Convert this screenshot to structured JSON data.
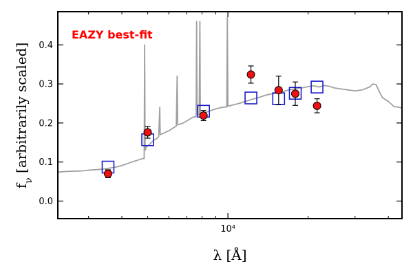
{
  "chart_data": {
    "type": "scatter",
    "title": "",
    "xlabel": "λ [Å]",
    "ylabel": "f_ν [arbitrarily scaled]",
    "x_scale": "log",
    "xlim": [
      2300,
      45000
    ],
    "ylim": [
      -0.045,
      0.485
    ],
    "y_ticks": [
      0.0,
      0.1,
      0.2,
      0.3,
      0.4
    ],
    "y_tick_labels": [
      "0.0",
      "0.1",
      "0.2",
      "0.3",
      "0.4"
    ],
    "x_major_ticks": [
      10000
    ],
    "x_major_tick_labels": [
      "10⁴"
    ],
    "x_minor_ticks": [
      3000,
      4000,
      5000,
      6000,
      7000,
      8000,
      9000,
      20000,
      30000,
      40000
    ],
    "grid": false,
    "annotation": {
      "text": "EAZY best-fit",
      "color": "#ff0000"
    },
    "colors": {
      "template": "#a0a0a0",
      "observed": "#ee1111",
      "model": "#1a1acc"
    },
    "series": [
      {
        "kind": "line",
        "points": [
          [
            2300,
            0.074
          ],
          [
            2500,
            0.076
          ],
          [
            2800,
            0.077
          ],
          [
            3000,
            0.079
          ],
          [
            3300,
            0.081
          ],
          [
            3500,
            0.083
          ],
          [
            3800,
            0.087
          ],
          [
            4000,
            0.091
          ],
          [
            4200,
            0.096
          ],
          [
            4400,
            0.101
          ],
          [
            4600,
            0.105
          ],
          [
            4800,
            0.109
          ],
          [
            4850,
            0.109
          ],
          [
            4870,
            0.4
          ],
          [
            4890,
            0.13
          ],
          [
            4950,
            0.14
          ],
          [
            5000,
            0.141
          ],
          [
            5200,
            0.152
          ],
          [
            5300,
            0.157
          ],
          [
            5400,
            0.16
          ],
          [
            5500,
            0.165
          ],
          [
            5550,
            0.24
          ],
          [
            5570,
            0.17
          ],
          [
            6000,
            0.18
          ],
          [
            6400,
            0.192
          ],
          [
            6450,
            0.32
          ],
          [
            6480,
            0.195
          ],
          [
            6800,
            0.2
          ],
          [
            7000,
            0.205
          ],
          [
            7400,
            0.215
          ],
          [
            7600,
            0.216
          ],
          [
            7630,
            0.46
          ],
          [
            7660,
            0.22
          ],
          [
            7800,
            0.222
          ],
          [
            7850,
            0.46
          ],
          [
            7880,
            0.222
          ],
          [
            8000,
            0.224
          ],
          [
            8500,
            0.23
          ],
          [
            9000,
            0.236
          ],
          [
            9500,
            0.24
          ],
          [
            9900,
            0.241
          ],
          [
            9950,
            0.47
          ],
          [
            10000,
            0.243
          ],
          [
            11000,
            0.25
          ],
          [
            12000,
            0.258
          ],
          [
            13000,
            0.265
          ],
          [
            14000,
            0.272
          ],
          [
            15000,
            0.276
          ],
          [
            16000,
            0.28
          ],
          [
            17000,
            0.285
          ],
          [
            18000,
            0.288
          ],
          [
            19000,
            0.29
          ],
          [
            20000,
            0.293
          ],
          [
            21000,
            0.295
          ],
          [
            22000,
            0.292
          ],
          [
            23000,
            0.296
          ],
          [
            24000,
            0.294
          ],
          [
            25000,
            0.29
          ],
          [
            26000,
            0.288
          ],
          [
            28000,
            0.285
          ],
          [
            30000,
            0.282
          ],
          [
            32000,
            0.285
          ],
          [
            34000,
            0.292
          ],
          [
            35000,
            0.3
          ],
          [
            36000,
            0.298
          ],
          [
            37000,
            0.28
          ],
          [
            38000,
            0.265
          ],
          [
            40000,
            0.255
          ],
          [
            42000,
            0.242
          ],
          [
            44000,
            0.24
          ],
          [
            45000,
            0.238
          ]
        ]
      },
      {
        "kind": "points-with-error",
        "points": [
          {
            "x": 3550,
            "y": 0.07,
            "err": 0.01
          },
          {
            "x": 5000,
            "y": 0.176,
            "err": 0.015
          },
          {
            "x": 8100,
            "y": 0.219,
            "err": 0.013
          },
          {
            "x": 12200,
            "y": 0.324,
            "err": 0.022
          },
          {
            "x": 15500,
            "y": 0.284,
            "err": 0.036
          },
          {
            "x": 17900,
            "y": 0.275,
            "err": 0.03
          },
          {
            "x": 21600,
            "y": 0.244,
            "err": 0.018
          }
        ]
      },
      {
        "kind": "squares",
        "points": [
          {
            "x": 3550,
            "y": 0.087
          },
          {
            "x": 5000,
            "y": 0.157
          },
          {
            "x": 8100,
            "y": 0.23
          },
          {
            "x": 12200,
            "y": 0.264
          },
          {
            "x": 15500,
            "y": 0.262
          },
          {
            "x": 17900,
            "y": 0.276
          },
          {
            "x": 21600,
            "y": 0.292
          }
        ]
      }
    ]
  }
}
